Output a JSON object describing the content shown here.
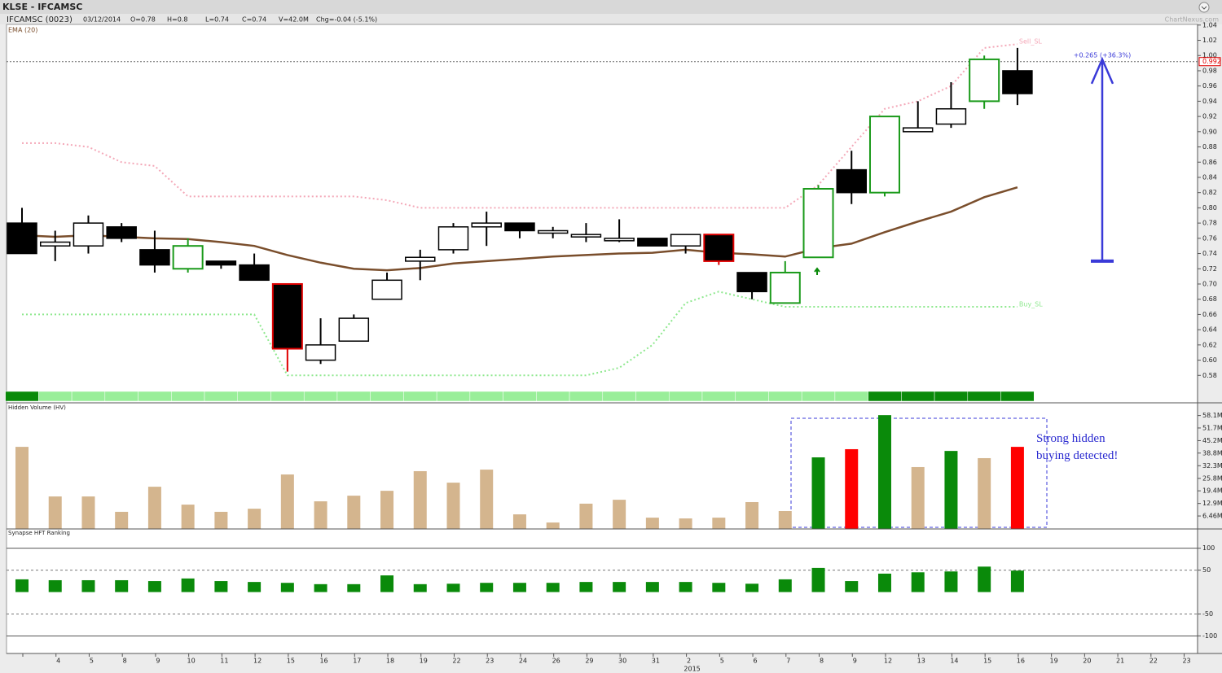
{
  "header": {
    "title": "KLSE - IFCAMSC",
    "items": [
      "IFCAMSC (0023)",
      "03/12/2014",
      "O=0.78",
      "H=0.8",
      "L=0.74",
      "C=0.74",
      "V=42.0M",
      "Chg=-0.04 (-5.1%)"
    ],
    "watermark": "ChartNexus.com"
  },
  "chart_data": [
    {
      "type": "candlestick",
      "categories": [
        null,
        "4",
        "5",
        "8",
        "9",
        "10",
        "11",
        "12",
        "15",
        "16",
        "17",
        "18",
        "19",
        "22",
        "23",
        "24",
        "26",
        "29",
        "30",
        "31",
        "2",
        "5",
        "6",
        "7",
        "8",
        "9",
        "12",
        "13",
        "14",
        "15",
        "16",
        "19",
        "20",
        "21",
        "22",
        "23"
      ],
      "year_label": "2015",
      "open": [
        0.78,
        0.75,
        0.75,
        0.775,
        0.745,
        0.72,
        0.73,
        0.725,
        0.7,
        0.6,
        0.625,
        0.68,
        0.73,
        0.745,
        0.775,
        0.78,
        0.77,
        0.765,
        0.76,
        0.76,
        0.75,
        0.765,
        0.715,
        0.675,
        0.735,
        0.85,
        0.82,
        0.9,
        0.91,
        0.94,
        0.98,
        null,
        null,
        null,
        null,
        null
      ],
      "high": [
        0.8,
        0.77,
        0.79,
        0.78,
        0.77,
        0.76,
        0.73,
        0.74,
        0.7,
        0.655,
        0.66,
        0.715,
        0.745,
        0.78,
        0.795,
        0.78,
        0.775,
        0.78,
        0.785,
        0.76,
        0.765,
        0.765,
        0.715,
        0.73,
        0.83,
        0.875,
        0.92,
        0.94,
        0.965,
        1.0,
        1.01,
        null,
        null,
        null,
        null,
        null
      ],
      "low": [
        0.74,
        0.73,
        0.74,
        0.755,
        0.715,
        0.715,
        0.72,
        0.705,
        0.585,
        0.595,
        0.625,
        0.68,
        0.705,
        0.74,
        0.75,
        0.76,
        0.76,
        0.755,
        0.755,
        0.75,
        0.74,
        0.725,
        0.68,
        0.675,
        0.735,
        0.805,
        0.815,
        0.9,
        0.905,
        0.93,
        0.935,
        null,
        null,
        null,
        null,
        null
      ],
      "close": [
        0.74,
        0.755,
        0.78,
        0.76,
        0.725,
        0.75,
        0.725,
        0.705,
        0.615,
        0.62,
        0.655,
        0.705,
        0.735,
        0.775,
        0.78,
        0.77,
        0.77,
        0.765,
        0.76,
        0.75,
        0.765,
        0.73,
        0.69,
        0.715,
        0.825,
        0.82,
        0.92,
        0.905,
        0.93,
        0.995,
        0.95,
        null,
        null,
        null,
        null,
        null
      ],
      "up_color": "#ffffff",
      "down_color": "#000000",
      "wick_color": "#000000",
      "outline_colors": [
        null,
        null,
        null,
        null,
        null,
        "#1a9a1a",
        null,
        null,
        "#e00000",
        null,
        null,
        null,
        null,
        null,
        null,
        null,
        null,
        null,
        null,
        null,
        null,
        "#e00000",
        null,
        "#1a9a1a",
        "#1a9a1a",
        null,
        "#1a9a1a",
        null,
        null,
        "#1a9a1a",
        null,
        null,
        null,
        null,
        null,
        null
      ],
      "lines": [
        {
          "name": "EMA (20)",
          "color": "#7a4e2c",
          "style": "solid",
          "values": [
            0.764,
            0.762,
            0.764,
            0.762,
            0.76,
            0.759,
            0.755,
            0.75,
            0.738,
            0.728,
            0.72,
            0.718,
            0.721,
            0.727,
            0.73,
            0.733,
            0.736,
            0.738,
            0.74,
            0.741,
            0.745,
            0.741,
            0.739,
            0.736,
            0.747,
            0.753,
            0.768,
            0.782,
            0.795,
            0.814,
            0.827,
            null,
            null,
            null,
            null,
            null
          ]
        },
        {
          "name": "Sell_SL",
          "color": "#f4a8b8",
          "style": "dotted",
          "values": [
            0.885,
            0.885,
            0.88,
            0.86,
            0.855,
            0.815,
            0.815,
            0.815,
            0.815,
            0.815,
            0.815,
            0.81,
            0.8,
            0.8,
            0.8,
            0.8,
            0.8,
            0.8,
            0.8,
            0.8,
            0.8,
            0.8,
            0.8,
            0.8,
            0.83,
            0.88,
            0.93,
            0.94,
            0.96,
            1.01,
            1.015,
            null,
            null,
            null,
            null,
            null
          ]
        },
        {
          "name": "Buy_SL",
          "color": "#8ee88e",
          "style": "dotted",
          "values": [
            0.66,
            0.66,
            0.66,
            0.66,
            0.66,
            0.66,
            0.66,
            0.66,
            0.58,
            0.58,
            0.58,
            0.58,
            0.58,
            0.58,
            0.58,
            0.58,
            0.58,
            0.58,
            0.59,
            0.62,
            0.675,
            0.69,
            0.68,
            0.67,
            0.67,
            0.67,
            0.67,
            0.67,
            0.67,
            0.67,
            0.67,
            null,
            null,
            null,
            null,
            null
          ]
        }
      ],
      "signal_colors": [
        "#0a8a0a",
        "#99ee99",
        "#99ee99",
        "#99ee99",
        "#99ee99",
        "#99ee99",
        "#99ee99",
        "#99ee99",
        "#99ee99",
        "#99ee99",
        "#99ee99",
        "#99ee99",
        "#99ee99",
        "#99ee99",
        "#99ee99",
        "#99ee99",
        "#99ee99",
        "#99ee99",
        "#99ee99",
        "#99ee99",
        "#99ee99",
        "#99ee99",
        "#99ee99",
        "#99ee99",
        "#99ee99",
        "#99ee99",
        "#0a8a0a",
        "#0a8a0a",
        "#0a8a0a",
        "#0a8a0a",
        "#0a8a0a",
        null,
        null,
        null,
        null,
        null
      ],
      "last_price": {
        "value": 0.992,
        "label": "0.992"
      },
      "measure": {
        "label": "+0.265 (+36.3%)",
        "from": 0.73,
        "to": 0.995,
        "color": "#3a3ad8"
      },
      "ylim": [
        0.56,
        1.043
      ],
      "yticks": [
        0.58,
        {
          "value": 0.6,
          "label": "0.60"
        },
        0.62,
        0.64,
        0.66,
        0.68,
        {
          "value": 0.7,
          "label": "0.70"
        },
        0.72,
        0.74,
        0.76,
        0.78,
        {
          "value": 0.8,
          "label": "0.80"
        },
        0.82,
        0.84,
        0.86,
        0.88,
        {
          "value": 0.9,
          "label": "0.90"
        },
        0.92,
        0.94,
        0.96,
        0.98,
        {
          "value": 1.0,
          "label": "1.00"
        },
        1.02,
        1.04
      ]
    },
    {
      "type": "bar",
      "title": "Hidden Volume (HV)",
      "values": [
        42.0,
        16.5,
        16.5,
        8.6,
        21.5,
        12.3,
        8.6,
        10.2,
        27.8,
        14.0,
        16.9,
        19.4,
        29.5,
        23.6,
        30.3,
        7.3,
        3.1,
        12.8,
        14.8,
        5.6,
        5.2,
        5.6,
        13.6,
        9.0,
        36.6,
        40.8,
        58.3,
        31.6,
        39.9,
        36.2,
        42.0,
        null,
        null,
        null,
        null,
        null
      ],
      "colors": [
        "#d4b58e",
        "#d4b58e",
        "#d4b58e",
        "#d4b58e",
        "#d4b58e",
        "#d4b58e",
        "#d4b58e",
        "#d4b58e",
        "#d4b58e",
        "#d4b58e",
        "#d4b58e",
        "#d4b58e",
        "#d4b58e",
        "#d4b58e",
        "#d4b58e",
        "#d4b58e",
        "#d4b58e",
        "#d4b58e",
        "#d4b58e",
        "#d4b58e",
        "#d4b58e",
        "#d4b58e",
        "#d4b58e",
        "#d4b58e",
        "#0a8a0a",
        "#ff0000",
        "#0a8a0a",
        "#d4b58e",
        "#0a8a0a",
        "#d4b58e",
        "#ff0000",
        null,
        null,
        null,
        null,
        null
      ],
      "annotation": "Strong hidden buying detected!",
      "ylim": [
        0,
        63.8
      ],
      "yticks": [
        {
          "value": 58.1,
          "label": "58.1M"
        },
        {
          "value": 51.7,
          "label": "51.7M"
        },
        {
          "value": 45.2,
          "label": "45.2M"
        },
        {
          "value": 38.8,
          "label": "38.8M"
        },
        {
          "value": 32.3,
          "label": "32.3M"
        },
        {
          "value": 25.8,
          "label": "25.8M"
        },
        {
          "value": 19.4,
          "label": "19.4M"
        },
        {
          "value": 12.9,
          "label": "12.9M"
        },
        {
          "value": 6.46,
          "label": "6.46M"
        }
      ]
    },
    {
      "type": "bar",
      "title": "Synapse HFT Ranking",
      "color": "#0a8a0a",
      "values": [
        29,
        27,
        27,
        27,
        25,
        31,
        25,
        23,
        21,
        18,
        18,
        38,
        18,
        19,
        21,
        21,
        21,
        23,
        23,
        23,
        23,
        21,
        19,
        29,
        55,
        25,
        42,
        45,
        47,
        58,
        49,
        null,
        null,
        null,
        null,
        null
      ],
      "ylim": [
        -140,
        142
      ],
      "yticks": [
        100,
        50,
        -50,
        -100
      ]
    }
  ]
}
